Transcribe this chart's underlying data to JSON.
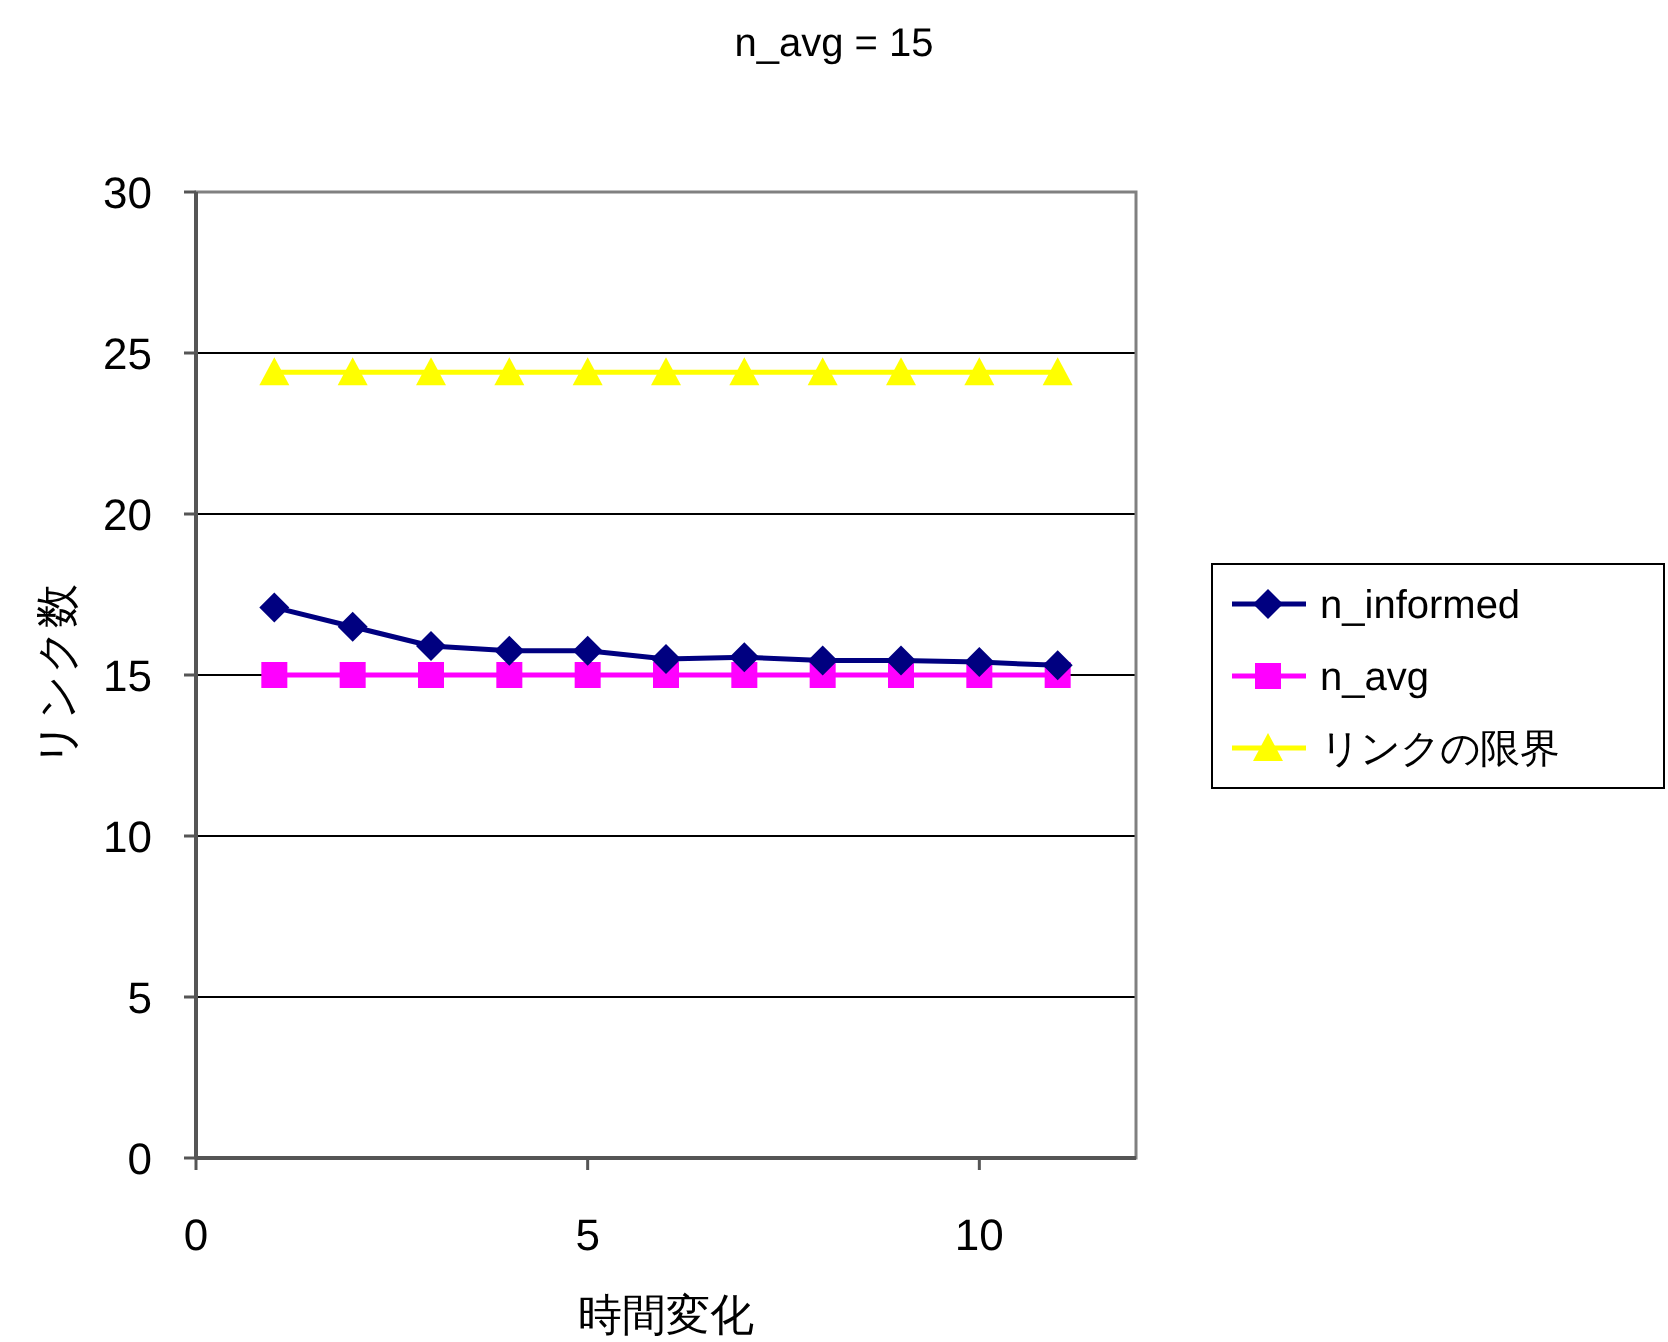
{
  "chart_data": {
    "type": "line",
    "title": "n_avg = 15",
    "xlabel": "時間変化",
    "ylabel": "リンク数",
    "x": [
      1,
      2,
      3,
      4,
      5,
      6,
      7,
      8,
      9,
      10,
      11
    ],
    "series": [
      {
        "name": "n_informed",
        "color": "#000080",
        "marker": "diamond",
        "values": [
          17.1,
          16.5,
          15.9,
          15.75,
          15.75,
          15.5,
          15.55,
          15.45,
          15.45,
          15.4,
          15.3
        ]
      },
      {
        "name": "n_avg",
        "color": "#ff00ff",
        "marker": "square",
        "values": [
          15,
          15,
          15,
          15,
          15,
          15,
          15,
          15,
          15,
          15,
          15
        ]
      },
      {
        "name": "リンクの限界",
        "color": "#ffff00",
        "marker": "triangle",
        "values": [
          24.4,
          24.4,
          24.4,
          24.4,
          24.4,
          24.4,
          24.4,
          24.4,
          24.4,
          24.4,
          24.4
        ]
      }
    ],
    "xlim": [
      0,
      12
    ],
    "xticks": [
      0,
      5,
      10
    ],
    "ylim": [
      0,
      30
    ],
    "yticks": [
      0,
      5,
      10,
      15,
      20,
      25,
      30
    ],
    "grid": "y",
    "legend": "right",
    "line_style": "solid"
  }
}
